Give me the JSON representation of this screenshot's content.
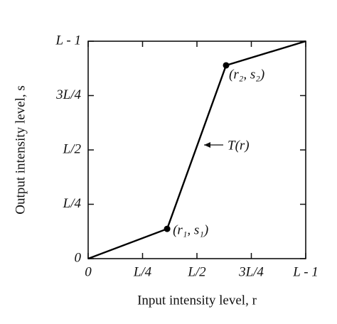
{
  "chart_data": {
    "type": "line",
    "xlabel": "Input intensity level, r",
    "ylabel": "Output intensity level, s",
    "x": [
      0,
      0.363,
      0.634,
      1
    ],
    "values": [
      0,
      0.137,
      0.889,
      1
    ],
    "color": "#000000",
    "xlim": [
      0,
      1
    ],
    "ylim": [
      0,
      1
    ],
    "xticks": [
      0,
      {
        "value": 0.25,
        "label": "L/4"
      },
      {
        "value": 0.5,
        "label": "L/2"
      },
      {
        "value": 0.75,
        "label": "3L/4"
      },
      {
        "value": 1,
        "label": "L - 1"
      }
    ],
    "yticks": [
      0,
      {
        "value": 0.25,
        "label": "L/4"
      },
      {
        "value": 0.5,
        "label": "L/2"
      },
      {
        "value": 0.75,
        "label": "3L/4"
      },
      {
        "value": 1,
        "label": "L - 1"
      }
    ],
    "annotations": [
      "(r₁, s₁)",
      "(r₂, s₂)",
      "T(r)"
    ]
  }
}
